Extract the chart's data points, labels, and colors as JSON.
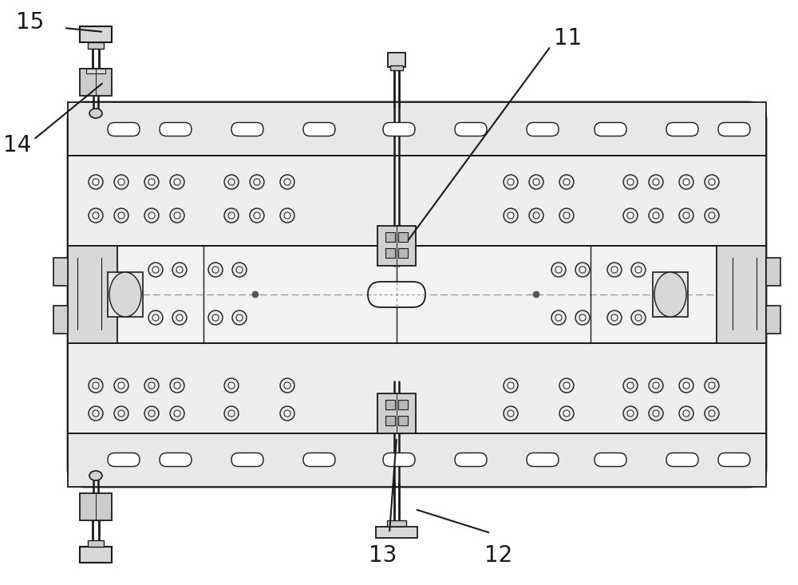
{
  "bg": "#ffffff",
  "lc": "#1a1a1a",
  "fc_plate": "#f2f2f2",
  "fc_rail": "#e0e0e0",
  "fc_band": "#e8e8e8",
  "fc_center": "#f0f0f0",
  "fc_block": "#d8d8d8",
  "fc_slot": "#ffffff",
  "fc_nut": "#e8e8e8",
  "fc_dark": "#cccccc",
  "label_fs": 20
}
